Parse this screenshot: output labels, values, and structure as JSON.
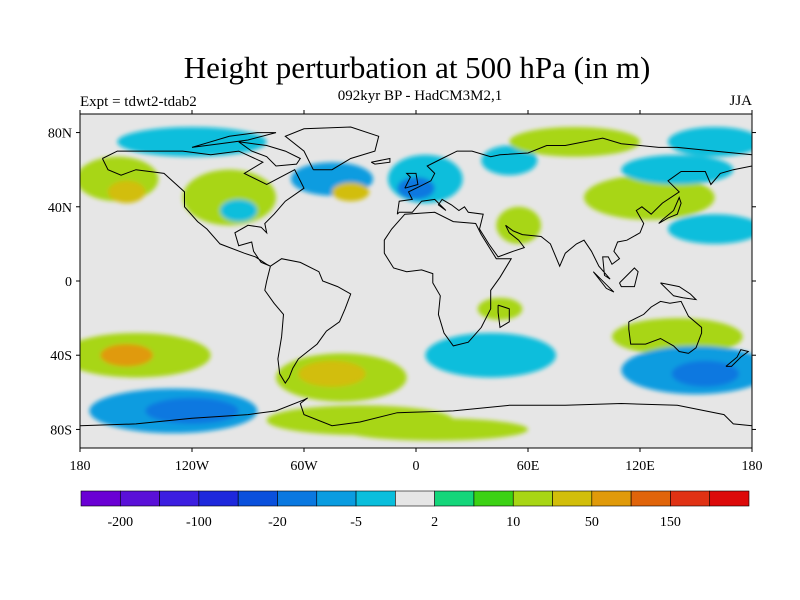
{
  "header": {
    "title": "Height perturbation at 500 hPa (in m)",
    "expt": "Expt = tdwt2-tdab2",
    "subtitle": "092kyr BP - HadCM3M2,1",
    "season": "JJA"
  },
  "map": {
    "projection": "cylindrical-equidistant",
    "lon_range": [
      -180,
      180
    ],
    "lat_range": [
      -90,
      90
    ],
    "lat_ticks": [
      "80N",
      "40N",
      "0",
      "40S",
      "80S"
    ],
    "lat_tick_values": [
      80,
      40,
      0,
      -40,
      -80
    ],
    "lon_ticks": [
      "180",
      "120W",
      "60W",
      "0",
      "60E",
      "120E",
      "180"
    ],
    "lon_tick_values": [
      -180,
      -120,
      -60,
      0,
      60,
      120,
      180
    ]
  },
  "colorbar": {
    "colors": [
      "#6a00d4",
      "#5a10d8",
      "#3c1ee0",
      "#1e28dc",
      "#0a50dc",
      "#0a78e0",
      "#0a9ce0",
      "#0abedc",
      "#e6e6e6",
      "#14d67a",
      "#3cd214",
      "#a8d614",
      "#d2be0a",
      "#e09a0a",
      "#e0640a",
      "#e03214",
      "#dc0a0a"
    ],
    "labels": [
      "-200",
      "-100",
      "-20",
      "-5",
      "2",
      "10",
      "50",
      "150"
    ],
    "label_boundaries": [
      1,
      3,
      5,
      7,
      9,
      11,
      13,
      15
    ]
  },
  "chart_data": {
    "type": "heatmap",
    "title": "Height perturbation at 500 hPa (in m)",
    "units": "m",
    "contour_levels": [
      -250,
      -200,
      -150,
      -100,
      -50,
      -20,
      -10,
      -5,
      -2,
      2,
      5,
      10,
      20,
      50,
      100,
      150,
      200
    ],
    "background_level": "-2 to 2",
    "blobs": [
      {
        "lon": -45,
        "lat": 55,
        "rx": 22,
        "ry": 9,
        "value": -12
      },
      {
        "lon": -35,
        "lat": 48,
        "rx": 10,
        "ry": 5,
        "value": 12
      },
      {
        "lon": -100,
        "lat": 45,
        "rx": 25,
        "ry": 15,
        "value": 7
      },
      {
        "lon": -95,
        "lat": 38,
        "rx": 10,
        "ry": 6,
        "value": -7
      },
      {
        "lon": -160,
        "lat": 55,
        "rx": 22,
        "ry": 12,
        "value": 7
      },
      {
        "lon": -155,
        "lat": 48,
        "rx": 10,
        "ry": 6,
        "value": 14
      },
      {
        "lon": -120,
        "lat": 75,
        "rx": 40,
        "ry": 8,
        "value": -6
      },
      {
        "lon": 5,
        "lat": 55,
        "rx": 20,
        "ry": 13,
        "value": -10
      },
      {
        "lon": 0,
        "lat": 50,
        "rx": 10,
        "ry": 6,
        "value": -25
      },
      {
        "lon": 50,
        "lat": 65,
        "rx": 15,
        "ry": 8,
        "value": -7
      },
      {
        "lon": 55,
        "lat": 30,
        "rx": 12,
        "ry": 10,
        "value": 7
      },
      {
        "lon": 85,
        "lat": 75,
        "rx": 35,
        "ry": 8,
        "value": 7
      },
      {
        "lon": 125,
        "lat": 45,
        "rx": 35,
        "ry": 12,
        "value": 7
      },
      {
        "lon": 140,
        "lat": 60,
        "rx": 30,
        "ry": 8,
        "value": -6
      },
      {
        "lon": 160,
        "lat": 28,
        "rx": 25,
        "ry": 8,
        "value": -6
      },
      {
        "lon": 160,
        "lat": 75,
        "rx": 25,
        "ry": 8,
        "value": -6
      },
      {
        "lon": 45,
        "lat": -15,
        "rx": 12,
        "ry": 6,
        "value": 6
      },
      {
        "lon": 140,
        "lat": -30,
        "rx": 35,
        "ry": 10,
        "value": 6
      },
      {
        "lon": 150,
        "lat": -48,
        "rx": 40,
        "ry": 13,
        "value": -18
      },
      {
        "lon": 155,
        "lat": -50,
        "rx": 18,
        "ry": 7,
        "value": -30
      },
      {
        "lon": -150,
        "lat": -40,
        "rx": 40,
        "ry": 12,
        "value": 8
      },
      {
        "lon": -155,
        "lat": -40,
        "rx": 14,
        "ry": 6,
        "value": 25
      },
      {
        "lon": -130,
        "lat": -70,
        "rx": 45,
        "ry": 12,
        "value": -12
      },
      {
        "lon": -120,
        "lat": -70,
        "rx": 25,
        "ry": 7,
        "value": -30
      },
      {
        "lon": -40,
        "lat": -52,
        "rx": 35,
        "ry": 13,
        "value": 6
      },
      {
        "lon": -45,
        "lat": -50,
        "rx": 18,
        "ry": 7,
        "value": 12
      },
      {
        "lon": -30,
        "lat": -75,
        "rx": 50,
        "ry": 8,
        "value": 8
      },
      {
        "lon": 40,
        "lat": -40,
        "rx": 35,
        "ry": 12,
        "value": -7
      },
      {
        "lon": 10,
        "lat": -80,
        "rx": 50,
        "ry": 6,
        "value": 7
      }
    ]
  }
}
